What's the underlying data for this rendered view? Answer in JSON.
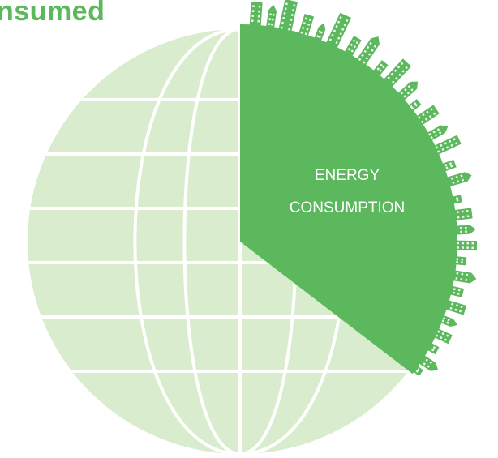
{
  "headline": "nsumed",
  "sector": {
    "label_line1": "ENERGY",
    "label_line2": "CONSUMPTION"
  },
  "colors": {
    "globe_fill": "#d9eccd",
    "globe_lines": "#ffffff",
    "sector_fill": "#5cb85c",
    "windows": "#ffffff",
    "headline": "#5cb85c"
  },
  "icons": {
    "globe": "globe-icon",
    "skyline": "city-skyline-icon"
  }
}
